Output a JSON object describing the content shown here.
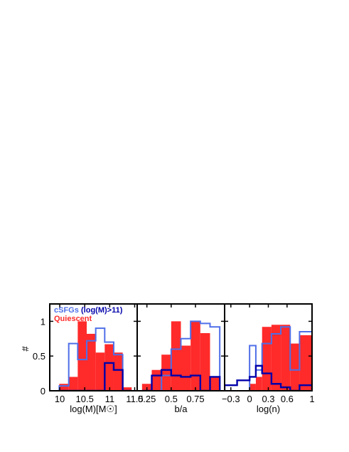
{
  "ylabel": "#",
  "colors": {
    "csfg": "#4f6fe8",
    "massive": "#0000aa",
    "quiescent": "#ff2a2a"
  },
  "legend": {
    "csfg_label": "cSFGs",
    "massive_label": "(log(M)>11)",
    "quiescent_label": "Quiescent"
  },
  "chart_data": [
    {
      "type": "histogram",
      "xlabel": "log(M)[M☉]",
      "xlim": [
        9.8,
        11.55
      ],
      "ylim": [
        0,
        1.25
      ],
      "xticks": [
        "10",
        "10.5",
        "11",
        "11.5"
      ],
      "xtick_values": [
        10,
        10.5,
        11,
        11.5
      ],
      "yticks": [
        "0",
        "0.5",
        "1"
      ],
      "ytick_values": [
        0,
        0.5,
        1
      ],
      "bin_edges": [
        9.99,
        10.18,
        10.36,
        10.54,
        10.72,
        10.9,
        11.08,
        11.26,
        11.44
      ],
      "series": [
        {
          "key": "quiescent",
          "values": [
            0.1,
            0.2,
            1.0,
            0.82,
            0.55,
            0.67,
            0.55,
            0.05
          ]
        },
        {
          "key": "csfg",
          "values": [
            0.07,
            0.68,
            0.45,
            0.72,
            0.9,
            0.7,
            0.52,
            0
          ]
        },
        {
          "key": "massive",
          "values": [
            0,
            0,
            0,
            0,
            0,
            0.4,
            0.3,
            0
          ]
        }
      ]
    },
    {
      "type": "histogram",
      "xlabel": "b/a",
      "xlim": [
        0.15,
        1.05
      ],
      "ylim": [
        0,
        1.25
      ],
      "xticks": [
        "0.25",
        "0.5",
        "0.75"
      ],
      "xtick_values": [
        0.25,
        0.5,
        0.75
      ],
      "yticks": [],
      "ytick_values": [
        0,
        0.5,
        1
      ],
      "bin_edges": [
        0.2,
        0.3,
        0.4,
        0.5,
        0.6,
        0.7,
        0.8,
        0.9,
        1.0
      ],
      "series": [
        {
          "key": "quiescent",
          "values": [
            0.1,
            0.3,
            0.52,
            1.0,
            0.65,
            1.0,
            0.83,
            0.2
          ]
        },
        {
          "key": "csfg",
          "values": [
            0,
            0,
            0.22,
            0.6,
            0.75,
            1.0,
            0.97,
            0.92
          ]
        },
        {
          "key": "massive",
          "values": [
            0,
            0.22,
            0.3,
            0.22,
            0.2,
            0.22,
            0,
            0.2
          ]
        }
      ]
    },
    {
      "type": "histogram",
      "xlabel": "log(n)",
      "xlim": [
        -0.4,
        1.0
      ],
      "ylim": [
        0,
        1.25
      ],
      "xticks": [
        "−0.3",
        "0",
        "0.3",
        "0.6",
        "1"
      ],
      "xtick_values": [
        -0.3,
        0,
        0.3,
        0.6,
        1.0
      ],
      "yticks": [],
      "ytick_values": [
        0,
        0.5,
        1
      ],
      "bin_edges": [
        -0.4,
        -0.2,
        0.0,
        0.1,
        0.2,
        0.35,
        0.5,
        0.65,
        0.8,
        1.0
      ],
      "series": [
        {
          "key": "quiescent",
          "values": [
            0,
            0,
            0.1,
            0.2,
            0.92,
            0.95,
            0.95,
            0.68,
            0.8
          ]
        },
        {
          "key": "csfg",
          "values": [
            0,
            0,
            0.65,
            0.3,
            0.68,
            0.82,
            0.92,
            0.3,
            0.85
          ]
        },
        {
          "key": "massive",
          "values": [
            0.08,
            0.15,
            0.2,
            0.36,
            0.25,
            0.1,
            0.05,
            0,
            0.08
          ]
        }
      ]
    }
  ]
}
